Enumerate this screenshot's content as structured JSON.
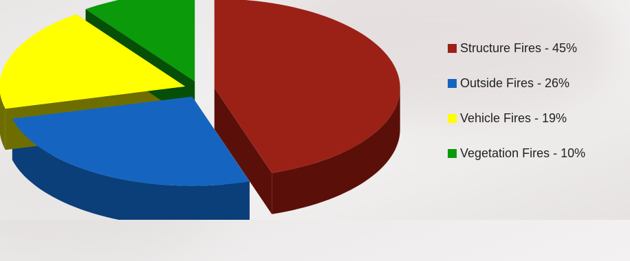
{
  "chart_data": {
    "type": "pie",
    "style": "3d-exploded",
    "legend_position": "right",
    "slices": [
      {
        "label": "Structure Fires - 45%",
        "value": 45,
        "color": "#9b2117",
        "side_color": "#5a1009"
      },
      {
        "label": "Outside Fires - 26%",
        "value": 26,
        "color": "#1565c0",
        "side_color": "#0b3f7a"
      },
      {
        "label": "Vehicle Fires - 19%",
        "value": 19,
        "color": "#ffff00",
        "side_color": "#6e6e00"
      },
      {
        "label": "Vegetation Fires - 10%",
        "value": 10,
        "color": "#0a9a0a",
        "side_color": "#064f06"
      }
    ]
  }
}
